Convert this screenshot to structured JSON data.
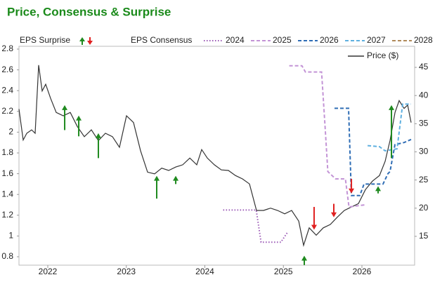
{
  "chart_data": {
    "type": "line",
    "title": "Price, Consensus & Surprise",
    "legend_surprise": "EPS Surprise",
    "legend_consensus": "EPS Consensus",
    "xlim": [
      2021.633,
      2026.671
    ],
    "xticks": [
      2022,
      2023,
      2024,
      2025,
      2026
    ],
    "ylim": [
      0.719,
      2.827
    ],
    "yticks": [
      0.8,
      1,
      1.2,
      1.4,
      1.6,
      1.8,
      2,
      2.2,
      2.4,
      2.6,
      2.8
    ],
    "y2lim": [
      9.88,
      48.74
    ],
    "y2ticks": [
      15,
      20,
      25,
      30,
      35,
      40,
      45
    ],
    "series": [
      {
        "name": "Price ($)",
        "color": "#333333",
        "axis": "y2",
        "style": "solid",
        "x": [
          2021.633,
          2021.687,
          2021.732,
          2021.794,
          2021.839,
          2021.884,
          2021.928,
          2021.973,
          2022.036,
          2022.107,
          2022.197,
          2022.286,
          2022.376,
          2022.465,
          2022.555,
          2022.644,
          2022.734,
          2022.823,
          2022.913,
          2023.002,
          2023.092,
          2023.181,
          2023.271,
          2023.36,
          2023.45,
          2023.539,
          2023.629,
          2023.718,
          2023.808,
          2023.897,
          2023.96,
          2024.031,
          2024.121,
          2024.21,
          2024.3,
          2024.389,
          2024.479,
          2024.568,
          2024.658,
          2024.747,
          2024.837,
          2024.926,
          2025.016,
          2025.105,
          2025.195,
          2025.257,
          2025.329,
          2025.418,
          2025.508,
          2025.597,
          2025.687,
          2025.776,
          2025.866,
          2025.955,
          2026.045,
          2026.134,
          2026.224,
          2026.295,
          2026.358,
          2026.421,
          2026.474,
          2026.537,
          2026.582,
          2026.626
        ],
        "values": [
          37.6,
          32.1,
          33.3,
          33.9,
          33.3,
          45.4,
          40.8,
          42.0,
          39.5,
          37.0,
          36.4,
          37.0,
          34.5,
          32.7,
          33.9,
          32.0,
          33.3,
          32.7,
          30.8,
          36.4,
          35.2,
          30.2,
          26.4,
          26.1,
          27.1,
          26.7,
          27.3,
          27.7,
          28.9,
          27.7,
          30.4,
          28.9,
          27.7,
          26.8,
          26.7,
          25.8,
          25.2,
          24.3,
          19.6,
          19.6,
          20.0,
          19.6,
          19.0,
          19.6,
          17.7,
          13.4,
          16.5,
          15.2,
          16.5,
          17.1,
          18.4,
          19.6,
          20.2,
          20.8,
          23.3,
          24.8,
          25.8,
          28.3,
          32.0,
          37.0,
          39.1,
          37.7,
          38.3,
          35.2
        ]
      },
      {
        "name": "2024",
        "color": "#9b59b6",
        "style": "dotted",
        "x": [
          2024.233,
          2024.654,
          2024.716,
          2024.967,
          2025.057
        ],
        "values": [
          1.25,
          1.25,
          0.94,
          0.94,
          1.04
        ]
      },
      {
        "name": "2025",
        "color": "#c394d6",
        "style": "dashed",
        "x": [
          2025.075,
          2025.236,
          2025.28,
          2025.486,
          2025.531,
          2025.566,
          2025.665,
          2025.79,
          2025.835,
          2026.04
        ],
        "values": [
          2.64,
          2.64,
          2.58,
          2.58,
          2.05,
          1.62,
          1.55,
          1.55,
          1.28,
          1.3
        ]
      },
      {
        "name": "2026",
        "color": "#2f6db5",
        "style": "dashed",
        "x": [
          2025.651,
          2025.83,
          2025.866,
          2025.973,
          2026.027,
          2026.268,
          2026.331,
          2026.358,
          2026.42,
          2026.537,
          2026.626
        ],
        "values": [
          2.23,
          2.23,
          1.39,
          1.39,
          1.5,
          1.5,
          1.6,
          1.62,
          1.88,
          1.9,
          1.93
        ]
      },
      {
        "name": "2027",
        "color": "#5fb0e0",
        "style": "dashed",
        "x": [
          2026.072,
          2026.224,
          2026.295,
          2026.447,
          2026.519,
          2026.626
        ],
        "values": [
          1.87,
          1.86,
          1.82,
          1.84,
          2.27,
          2.27
        ]
      },
      {
        "name": "2028",
        "color": "#b08a5a",
        "style": "dashed",
        "x": [],
        "values": []
      }
    ],
    "surprise": {
      "up_color": "#1f8a1f",
      "down_color": "#e02020",
      "x": [
        2022.215,
        2022.394,
        2022.644,
        2023.387,
        2023.629,
        2025.266,
        2026.206,
        2026.376,
        2025.391,
        2025.642,
        2025.866
      ],
      "estimate": [
        2.02,
        1.96,
        1.75,
        1.36,
        1.5,
        0.72,
        1.41,
        1.75,
        1.28,
        1.31,
        1.55
      ],
      "actual": [
        2.26,
        2.16,
        1.99,
        1.58,
        1.58,
        0.81,
        1.48,
        2.26,
        1.06,
        1.18,
        1.41
      ]
    }
  }
}
